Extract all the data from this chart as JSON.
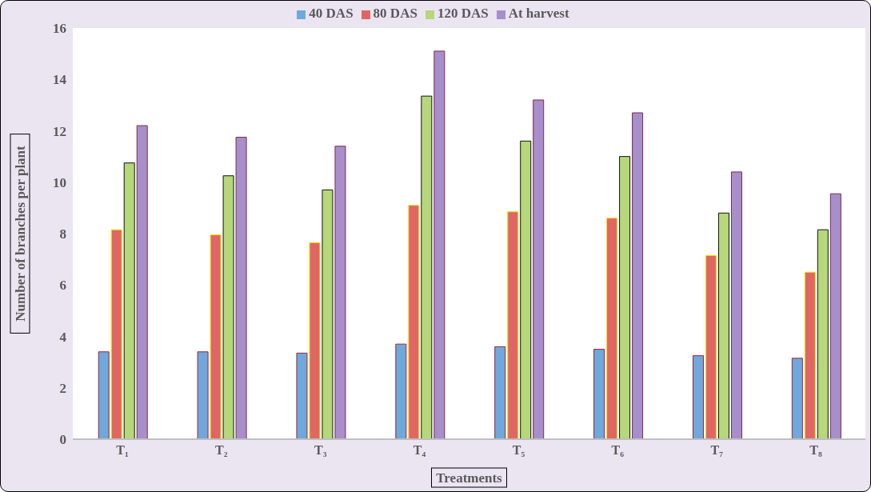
{
  "chart_data": {
    "type": "bar",
    "xlabel": "Treatments",
    "ylabel": "Number of branches per plant",
    "categories": [
      "T₁",
      "T₂",
      "T₃",
      "T₄",
      "T₅",
      "T₆",
      "T₇",
      "T₈"
    ],
    "series": [
      {
        "name": "40 DAS",
        "color": "#6fa8dc",
        "values": [
          3.4,
          3.4,
          3.35,
          3.7,
          3.6,
          3.5,
          3.25,
          3.15
        ]
      },
      {
        "name": "80 DAS",
        "color": "#e06666",
        "values": [
          8.15,
          7.95,
          7.65,
          9.1,
          8.85,
          8.6,
          7.15,
          6.5
        ]
      },
      {
        "name": "120 DAS",
        "color": "#b6d77a",
        "values": [
          10.75,
          10.25,
          9.7,
          13.35,
          11.6,
          11.0,
          8.8,
          8.15
        ]
      },
      {
        "name": "At harvest",
        "color": "#a78fcb",
        "values": [
          12.2,
          11.75,
          11.4,
          15.1,
          13.2,
          12.7,
          10.4,
          9.55
        ]
      }
    ],
    "ylim": [
      0,
      16
    ],
    "yticks": [
      0,
      2,
      4,
      6,
      8,
      10,
      12,
      14,
      16
    ],
    "grid": false,
    "legend": "top"
  }
}
